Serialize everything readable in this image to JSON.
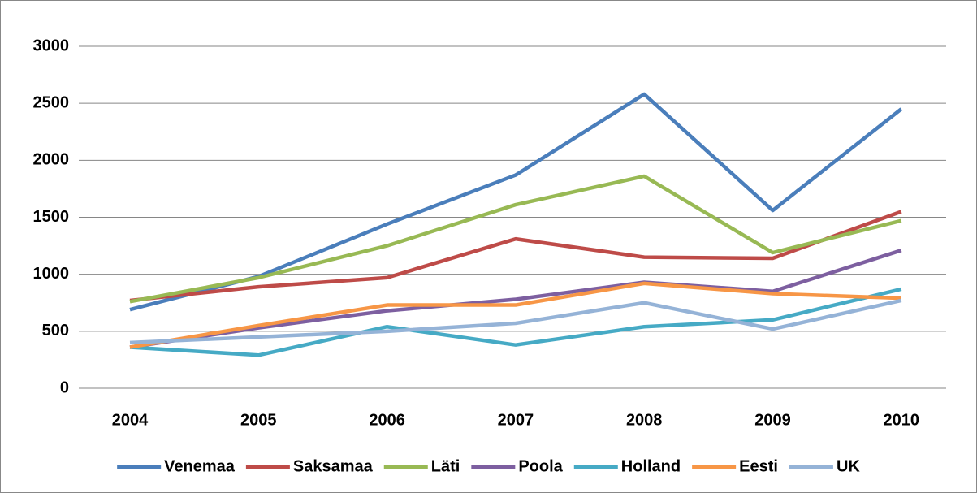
{
  "chart_data": {
    "type": "line",
    "categories": [
      "2004",
      "2005",
      "2006",
      "2007",
      "2008",
      "2009",
      "2010"
    ],
    "series": [
      {
        "name": "Venemaa",
        "color": "#4a7ebb",
        "values": [
          690,
          980,
          1440,
          1870,
          2580,
          1560,
          2450
        ]
      },
      {
        "name": "Saksamaa",
        "color": "#be4b48",
        "values": [
          770,
          890,
          970,
          1310,
          1150,
          1140,
          1550
        ]
      },
      {
        "name": "Läti",
        "color": "#98b954",
        "values": [
          760,
          970,
          1250,
          1610,
          1860,
          1190,
          1470
        ]
      },
      {
        "name": "Poola",
        "color": "#7d5fa0",
        "values": [
          360,
          530,
          680,
          780,
          930,
          850,
          1210
        ]
      },
      {
        "name": "Holland",
        "color": "#46aac5",
        "values": [
          360,
          290,
          540,
          380,
          540,
          600,
          870
        ]
      },
      {
        "name": "Eesti",
        "color": "#f79646",
        "values": [
          360,
          550,
          730,
          730,
          920,
          830,
          790
        ]
      },
      {
        "name": "UK",
        "color": "#95b3d7",
        "values": [
          400,
          450,
          500,
          570,
          750,
          520,
          770
        ]
      }
    ],
    "ylim": [
      0,
      3000
    ],
    "yticks": [
      0,
      500,
      1000,
      1500,
      2000,
      2500,
      3000
    ],
    "grid": true,
    "legend": "bottom"
  }
}
